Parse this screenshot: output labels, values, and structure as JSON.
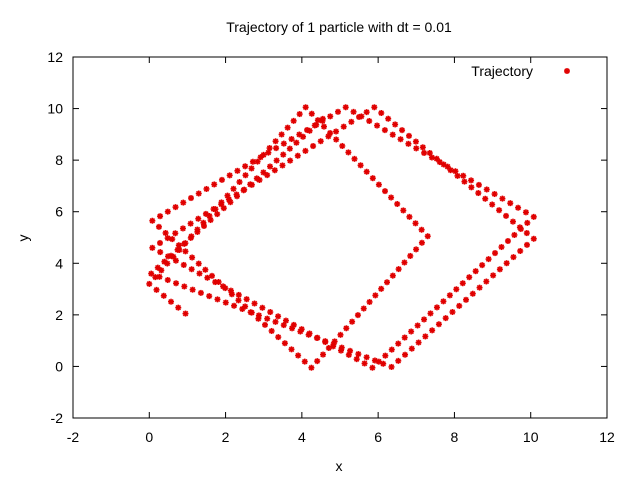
{
  "chart_data": {
    "type": "scatter",
    "title": "Trajectory of 1 particle with dt = 0.01",
    "xlabel": "x",
    "ylabel": "y",
    "xlim": [
      -2,
      12
    ],
    "ylim": [
      -2,
      12
    ],
    "xticks": [
      "-2",
      "0",
      "2",
      "4",
      "6",
      "8",
      "10",
      "12"
    ],
    "yticks": [
      "-2",
      "0",
      "2",
      "4",
      "6",
      "8",
      "10",
      "12"
    ],
    "grid": false,
    "legend_position": "top-right",
    "series": [
      {
        "name": "Trajectory",
        "color": "#e00000",
        "marker": "asterisk",
        "vertices": [
          [
            0.95,
            2.05
          ],
          [
            0,
            3.2
          ],
          [
            4.1,
            10.05
          ],
          [
            7.3,
            5.05
          ],
          [
            4.25,
            -0.05
          ],
          [
            0.08,
            5.65
          ],
          [
            5.15,
            10.05
          ],
          [
            10.08,
            5.8
          ],
          [
            5.85,
            -0.05
          ],
          [
            0.08,
            4.6
          ],
          [
            5.9,
            10.05
          ],
          [
            10.08,
            4.95
          ],
          [
            6.35,
            -0.02
          ],
          [
            0.05,
            3.6
          ],
          [
            4.55,
            9.6
          ]
        ]
      }
    ]
  }
}
